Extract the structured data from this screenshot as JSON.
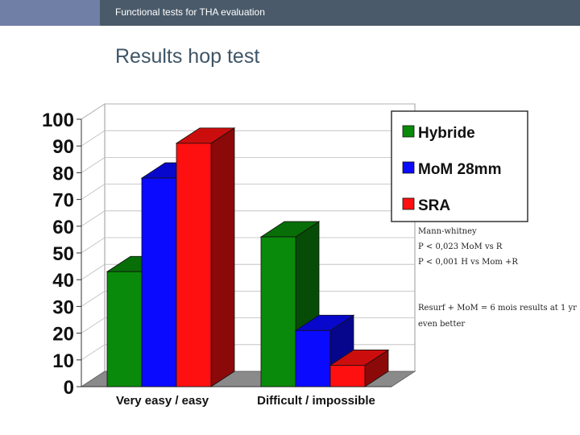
{
  "header": {
    "title": "Functional tests for THA evaluation"
  },
  "slide": {
    "title": "Results hop test"
  },
  "notes": [
    "Mann-whitney",
    "P < 0,023 MoM vs R",
    "P < 0,001 H vs Mom +R",
    "Resurf + MoM = 6 mois results at 1 yr",
    "even better"
  ],
  "colors": {
    "header_bg": "#4a5a6a",
    "header_accent": "#6f7fa6",
    "title": "#3f5566"
  },
  "chart_data": {
    "type": "bar",
    "categories": [
      "Very easy / easy",
      "Difficult / impossible"
    ],
    "series": [
      {
        "name": "Hybride",
        "values": [
          43,
          56
        ],
        "color": "#0a8a0a"
      },
      {
        "name": "MoM 28mm",
        "values": [
          78,
          21
        ],
        "color": "#0a0aff"
      },
      {
        "name": "SRA",
        "values": [
          91,
          8
        ],
        "color": "#ff1010"
      }
    ],
    "yticks": [
      "0",
      "10",
      "20",
      "30",
      "40",
      "50",
      "60",
      "70",
      "80",
      "90",
      "100"
    ],
    "ylim": [
      0,
      100
    ],
    "grid": true,
    "legend": "top-right",
    "style": "3d"
  }
}
